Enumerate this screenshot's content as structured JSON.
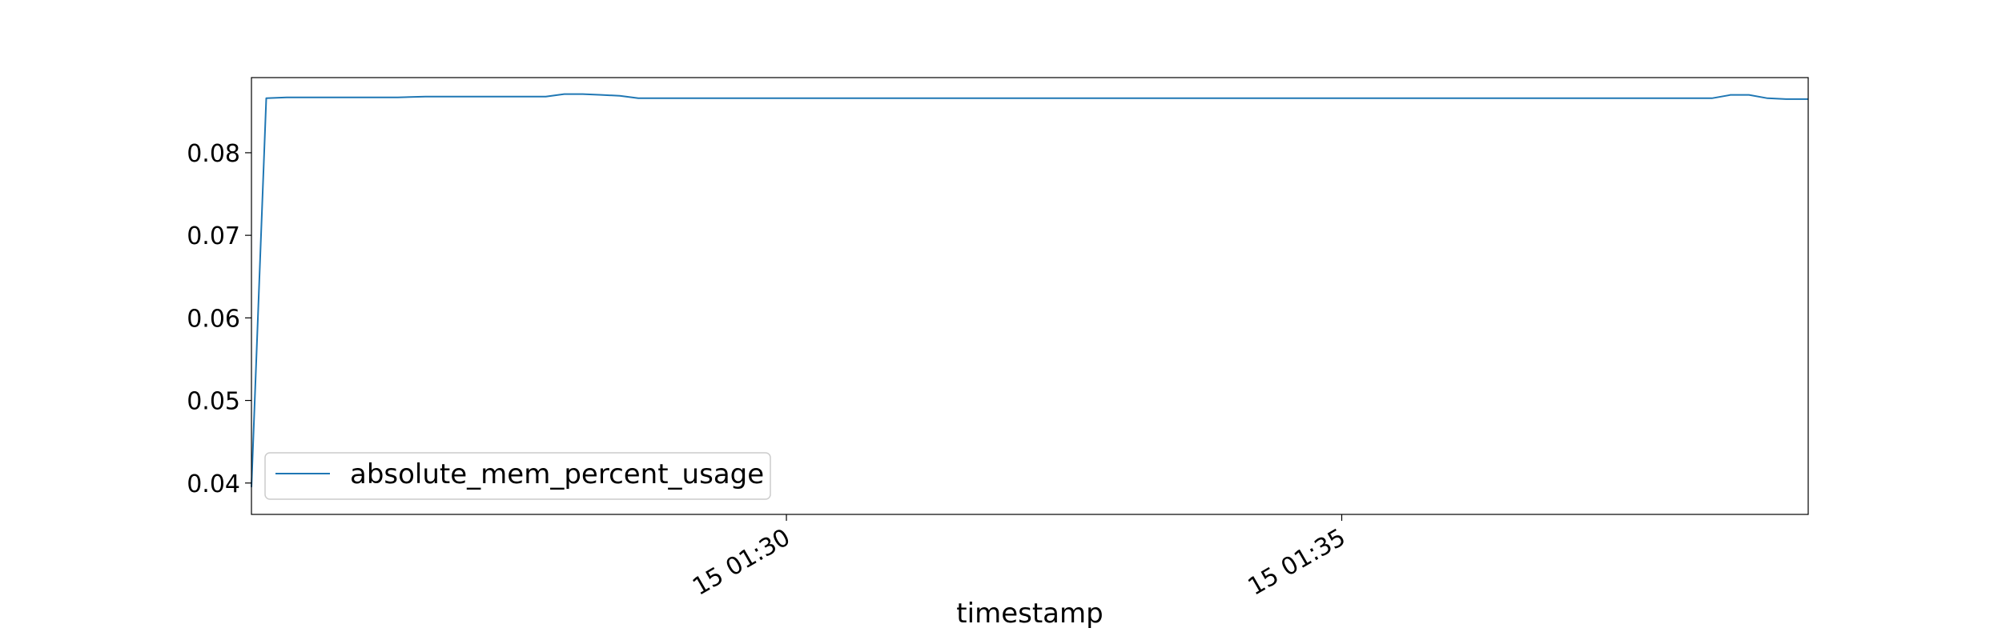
{
  "chart_data": {
    "type": "line",
    "title": "",
    "xlabel": "timestamp",
    "ylabel": "",
    "x_axis_type": "time",
    "x_range": [
      "01:25:11",
      "01:39:12"
    ],
    "ylim": [
      0.0362,
      0.0891
    ],
    "x_ticks": [
      {
        "t": "01:30:00",
        "label": "15 01:30"
      },
      {
        "t": "01:35:00",
        "label": "15 01:35"
      }
    ],
    "y_ticks": [
      {
        "v": 0.04,
        "label": "0.04"
      },
      {
        "v": 0.05,
        "label": "0.05"
      },
      {
        "v": 0.06,
        "label": "0.06"
      },
      {
        "v": 0.07,
        "label": "0.07"
      },
      {
        "v": 0.08,
        "label": "0.08"
      }
    ],
    "grid": false,
    "legend": {
      "position": "lower-left"
    },
    "series": [
      {
        "name": "absolute_mem_percent_usage",
        "color": "#1f77b4",
        "points": [
          {
            "t": "01:25:11",
            "y": 0.0395
          },
          {
            "t": "01:25:19",
            "y": 0.0866
          },
          {
            "t": "01:25:30",
            "y": 0.0867
          },
          {
            "t": "01:26:00",
            "y": 0.0867
          },
          {
            "t": "01:26:30",
            "y": 0.0867
          },
          {
            "t": "01:26:45",
            "y": 0.0868
          },
          {
            "t": "01:27:00",
            "y": 0.0868
          },
          {
            "t": "01:27:30",
            "y": 0.0868
          },
          {
            "t": "01:27:50",
            "y": 0.0868
          },
          {
            "t": "01:28:00",
            "y": 0.0871
          },
          {
            "t": "01:28:10",
            "y": 0.0871
          },
          {
            "t": "01:28:20",
            "y": 0.087
          },
          {
            "t": "01:28:30",
            "y": 0.0869
          },
          {
            "t": "01:28:40",
            "y": 0.0866
          },
          {
            "t": "01:29:00",
            "y": 0.0866
          },
          {
            "t": "01:30:00",
            "y": 0.0866
          },
          {
            "t": "01:32:00",
            "y": 0.0866
          },
          {
            "t": "01:34:00",
            "y": 0.0866
          },
          {
            "t": "01:36:00",
            "y": 0.0866
          },
          {
            "t": "01:38:00",
            "y": 0.0866
          },
          {
            "t": "01:38:20",
            "y": 0.0866
          },
          {
            "t": "01:38:30",
            "y": 0.087
          },
          {
            "t": "01:38:40",
            "y": 0.087
          },
          {
            "t": "01:38:50",
            "y": 0.0866
          },
          {
            "t": "01:39:00",
            "y": 0.0865
          },
          {
            "t": "01:39:12",
            "y": 0.0865
          }
        ]
      }
    ]
  }
}
